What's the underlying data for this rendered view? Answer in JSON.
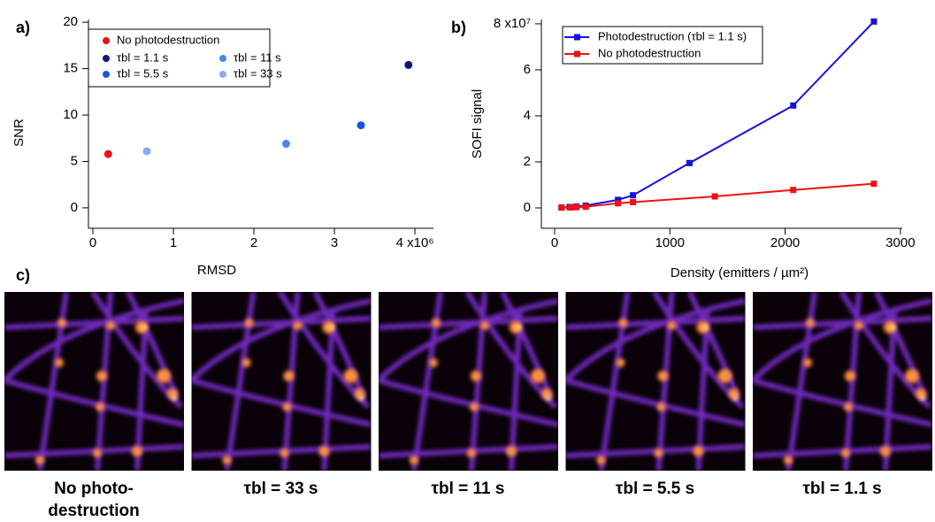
{
  "chart_data": [
    {
      "type": "scatter",
      "panel_label": "a)",
      "x_label": "RMSD",
      "y_label": "SNR",
      "xlim": [
        -55000,
        4230000
      ],
      "ylim": [
        -2.2,
        20.3
      ],
      "xticks": [
        {
          "value": 0,
          "label": "0"
        },
        {
          "value": 1000000,
          "label": "1"
        },
        {
          "value": 2000000,
          "label": "2"
        },
        {
          "value": 3000000,
          "label": "3"
        },
        {
          "value": 4000000,
          "label": "4 x10⁶"
        }
      ],
      "yticks": [
        0,
        5,
        10,
        15,
        20
      ],
      "series": [
        {
          "name": "No photodestruction",
          "color": "#ee1111",
          "x": [
            190000
          ],
          "values": [
            5.8
          ]
        },
        {
          "name": "τbl = 1.1 s",
          "color": "#0a1a7a",
          "x": [
            3920000
          ],
          "values": [
            15.4
          ]
        },
        {
          "name": "τbl = 5.5 s",
          "color": "#1a55e0",
          "x": [
            3330000
          ],
          "values": [
            8.9
          ]
        },
        {
          "name": "τbl = 11 s",
          "color": "#4a86ee",
          "x": [
            2400000
          ],
          "values": [
            6.9
          ]
        },
        {
          "name": "τbl = 33 s",
          "color": "#88aaf4",
          "x": [
            670000
          ],
          "values": [
            6.1
          ]
        }
      ]
    },
    {
      "type": "line",
      "panel_label": "b)",
      "x_label": "Density (emitters / µm²)",
      "y_label": "SOFI signal",
      "xlim": [
        -115,
        3016
      ],
      "ylim": [
        -8850000,
        81900000
      ],
      "xticks": [
        0,
        1000,
        2000,
        3000
      ],
      "yticks": [
        {
          "value": 0,
          "label": "0"
        },
        {
          "value": 20000000,
          "label": "2"
        },
        {
          "value": 40000000,
          "label": "4"
        },
        {
          "value": 60000000,
          "label": "6"
        },
        {
          "value": 80000000,
          "label": "8 x10⁷"
        }
      ],
      "series": [
        {
          "name": "Photodestruction (τbl = 1.1 s)",
          "color": "#1010e0",
          "x": [
            60,
            130,
            190,
            270,
            550,
            680,
            1170,
            2070,
            2770
          ],
          "values": [
            200000,
            400000,
            600000,
            1000000,
            3500000,
            5500000,
            19500000,
            44500000,
            81000000
          ]
        },
        {
          "name": "No photodestruction",
          "color": "#ee1111",
          "x": [
            60,
            140,
            190,
            270,
            550,
            680,
            1390,
            2070,
            2770
          ],
          "values": [
            100000,
            200000,
            300000,
            500000,
            2000000,
            2500000,
            5000000,
            7800000,
            10500000
          ]
        }
      ]
    }
  ],
  "panel_c": {
    "label": "c)",
    "captions": [
      [
        "No photo-",
        "destruction"
      ],
      [
        "τbl = 33 s"
      ],
      [
        "τbl = 11 s"
      ],
      [
        "τbl = 5.5 s"
      ],
      [
        "τbl = 1.1 s"
      ]
    ]
  }
}
